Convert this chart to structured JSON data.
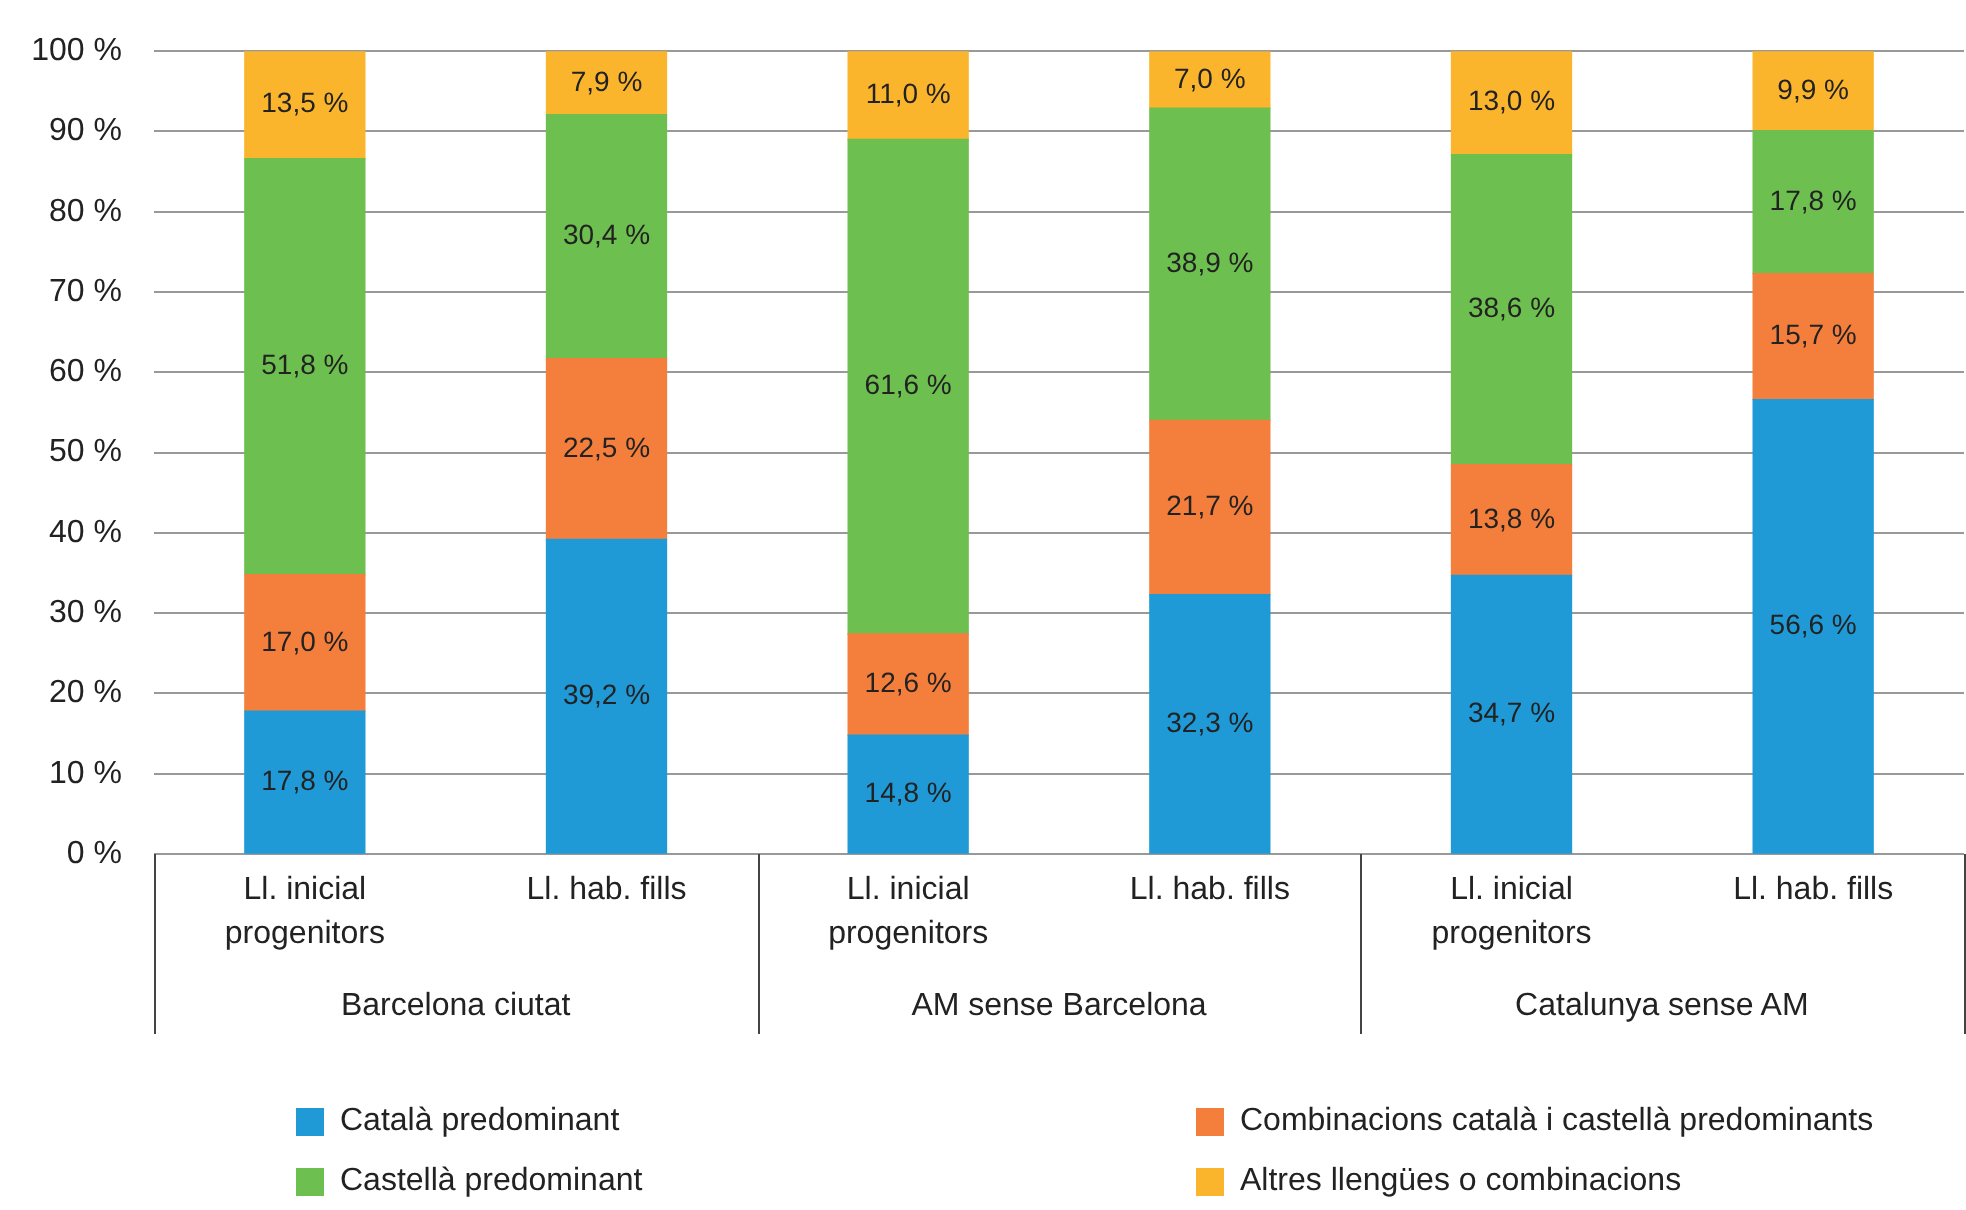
{
  "chart_data": {
    "type": "bar",
    "stacked": true,
    "categories": [
      "Ll. inicial progenitors",
      "Ll. hab. fills",
      "Ll. inicial progenitors",
      "Ll. hab. fills",
      "Ll. inicial progenitors",
      "Ll. hab. fills"
    ],
    "annotations": [
      "Barcelona ciutat",
      "AM sense Barcelona",
      "Catalunya sense AM"
    ],
    "series": [
      {
        "name": "Català predominant",
        "color": "#1f9ad6",
        "values": [
          17.8,
          39.2,
          14.8,
          32.3,
          34.7,
          56.6
        ],
        "value_labels": [
          "17,8 %",
          "39,2 %",
          "14,8 %",
          "32,3 %",
          "34,7 %",
          "56,6 %"
        ]
      },
      {
        "name": "Combinacions català i castellà predominants",
        "color": "#f47f3c",
        "values": [
          17.0,
          22.5,
          12.6,
          21.7,
          13.8,
          15.7
        ],
        "value_labels": [
          "17,0 %",
          "22,5 %",
          "12,6 %",
          "21,7 %",
          "13,8 %",
          "15,7 %"
        ]
      },
      {
        "name": "Castellà predominant",
        "color": "#6dbf4f",
        "values": [
          51.8,
          30.4,
          61.6,
          38.9,
          38.6,
          17.8
        ],
        "value_labels": [
          "51,8 %",
          "30,4 %",
          "61,6 %",
          "38,9 %",
          "38,6 %",
          "17,8 %"
        ]
      },
      {
        "name": "Altres llengües o combinacions",
        "color": "#fbb52d",
        "values": [
          13.5,
          7.9,
          11.0,
          7.0,
          13.0,
          9.9
        ],
        "value_labels": [
          "13,5 %",
          "7,9 %",
          "11,0 %",
          "7,0 %",
          "13,0 %",
          "9,9 %"
        ]
      }
    ],
    "ylim": [
      0,
      100
    ],
    "yticks": [
      {
        "value": 0,
        "label": "0 %"
      },
      {
        "value": 10,
        "label": "10 %"
      },
      {
        "value": 20,
        "label": "20 %"
      },
      {
        "value": 30,
        "label": "30 %"
      },
      {
        "value": 40,
        "label": "40 %"
      },
      {
        "value": 50,
        "label": "50 %"
      },
      {
        "value": 60,
        "label": "60 %"
      },
      {
        "value": 70,
        "label": "70 %"
      },
      {
        "value": 80,
        "label": "80 %"
      },
      {
        "value": 90,
        "label": "90 %"
      },
      {
        "value": 100,
        "label": "100 %"
      }
    ],
    "grid": "y",
    "legend": "bottom"
  }
}
